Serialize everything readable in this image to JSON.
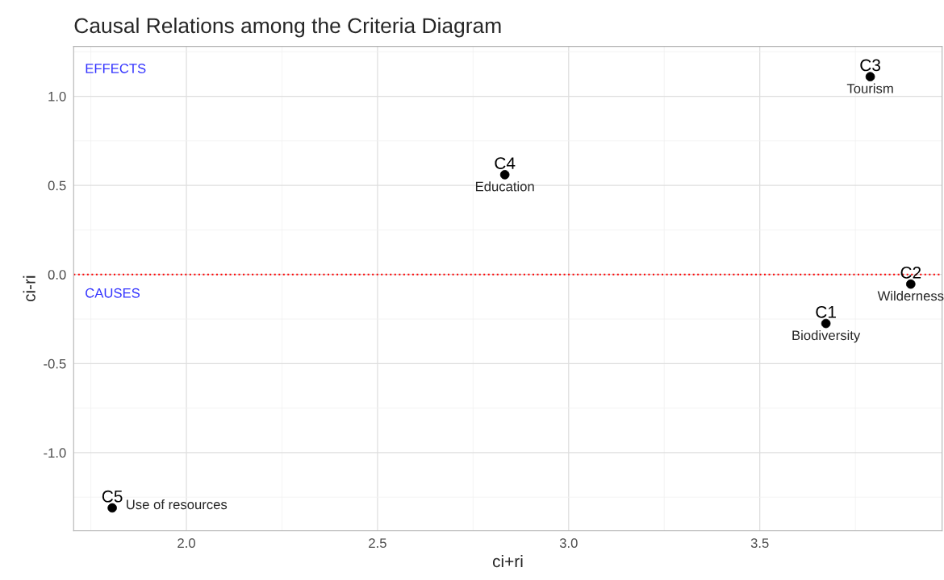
{
  "chart_data": {
    "type": "scatter",
    "title": "Causal Relations among the Criteria Diagram",
    "xlabel": "ci+ri",
    "ylabel": "ci-ri",
    "series": [
      {
        "name": "C1",
        "color": "#000000",
        "x": [
          3.673
        ],
        "values": [
          -0.275
        ]
      },
      {
        "name": "C2",
        "color": "#000000",
        "x": [
          3.895
        ],
        "values": [
          -0.054
        ]
      },
      {
        "name": "C3",
        "color": "#000000",
        "x": [
          3.789
        ],
        "values": [
          1.11
        ]
      },
      {
        "name": "C4",
        "color": "#000000",
        "x": [
          2.833
        ],
        "values": [
          0.56
        ]
      },
      {
        "name": "C5",
        "color": "#000000",
        "x": [
          1.806
        ],
        "values": [
          -1.31
        ]
      }
    ],
    "annotations": [
      {
        "text": "Biodiversity",
        "x": 3.673,
        "y": -0.275
      },
      {
        "text": "Wilderness",
        "x": 3.895,
        "y": -0.054
      },
      {
        "text": "Tourism",
        "x": 3.789,
        "y": 1.11
      },
      {
        "text": "Education",
        "x": 2.833,
        "y": 0.56
      },
      {
        "text": "Use of resources",
        "x": 1.806,
        "y": -1.31
      },
      "EFFECTS",
      "CAUSES"
    ],
    "ref_lines": [
      {
        "axis": "y",
        "value": 0,
        "color": "#ff0000",
        "line_style": "dotted"
      }
    ],
    "xlim": [
      1.705,
      3.977
    ],
    "ylim": [
      -1.438,
      1.28
    ],
    "xticks": [
      {
        "value": 2,
        "label": "2.0"
      },
      {
        "value": 2.5,
        "label": "2.5"
      },
      {
        "value": 3,
        "label": "3.0"
      },
      {
        "value": 3.5,
        "label": "3.5"
      }
    ],
    "yticks": [
      {
        "value": -1,
        "label": "-1.0"
      },
      {
        "value": -0.5,
        "label": "-0.5"
      },
      {
        "value": 0,
        "label": "0.0"
      },
      {
        "value": 0.5,
        "label": "0.5"
      },
      {
        "value": 1,
        "label": "1.0"
      }
    ],
    "grid": true,
    "marker": "circle",
    "legend": false
  }
}
